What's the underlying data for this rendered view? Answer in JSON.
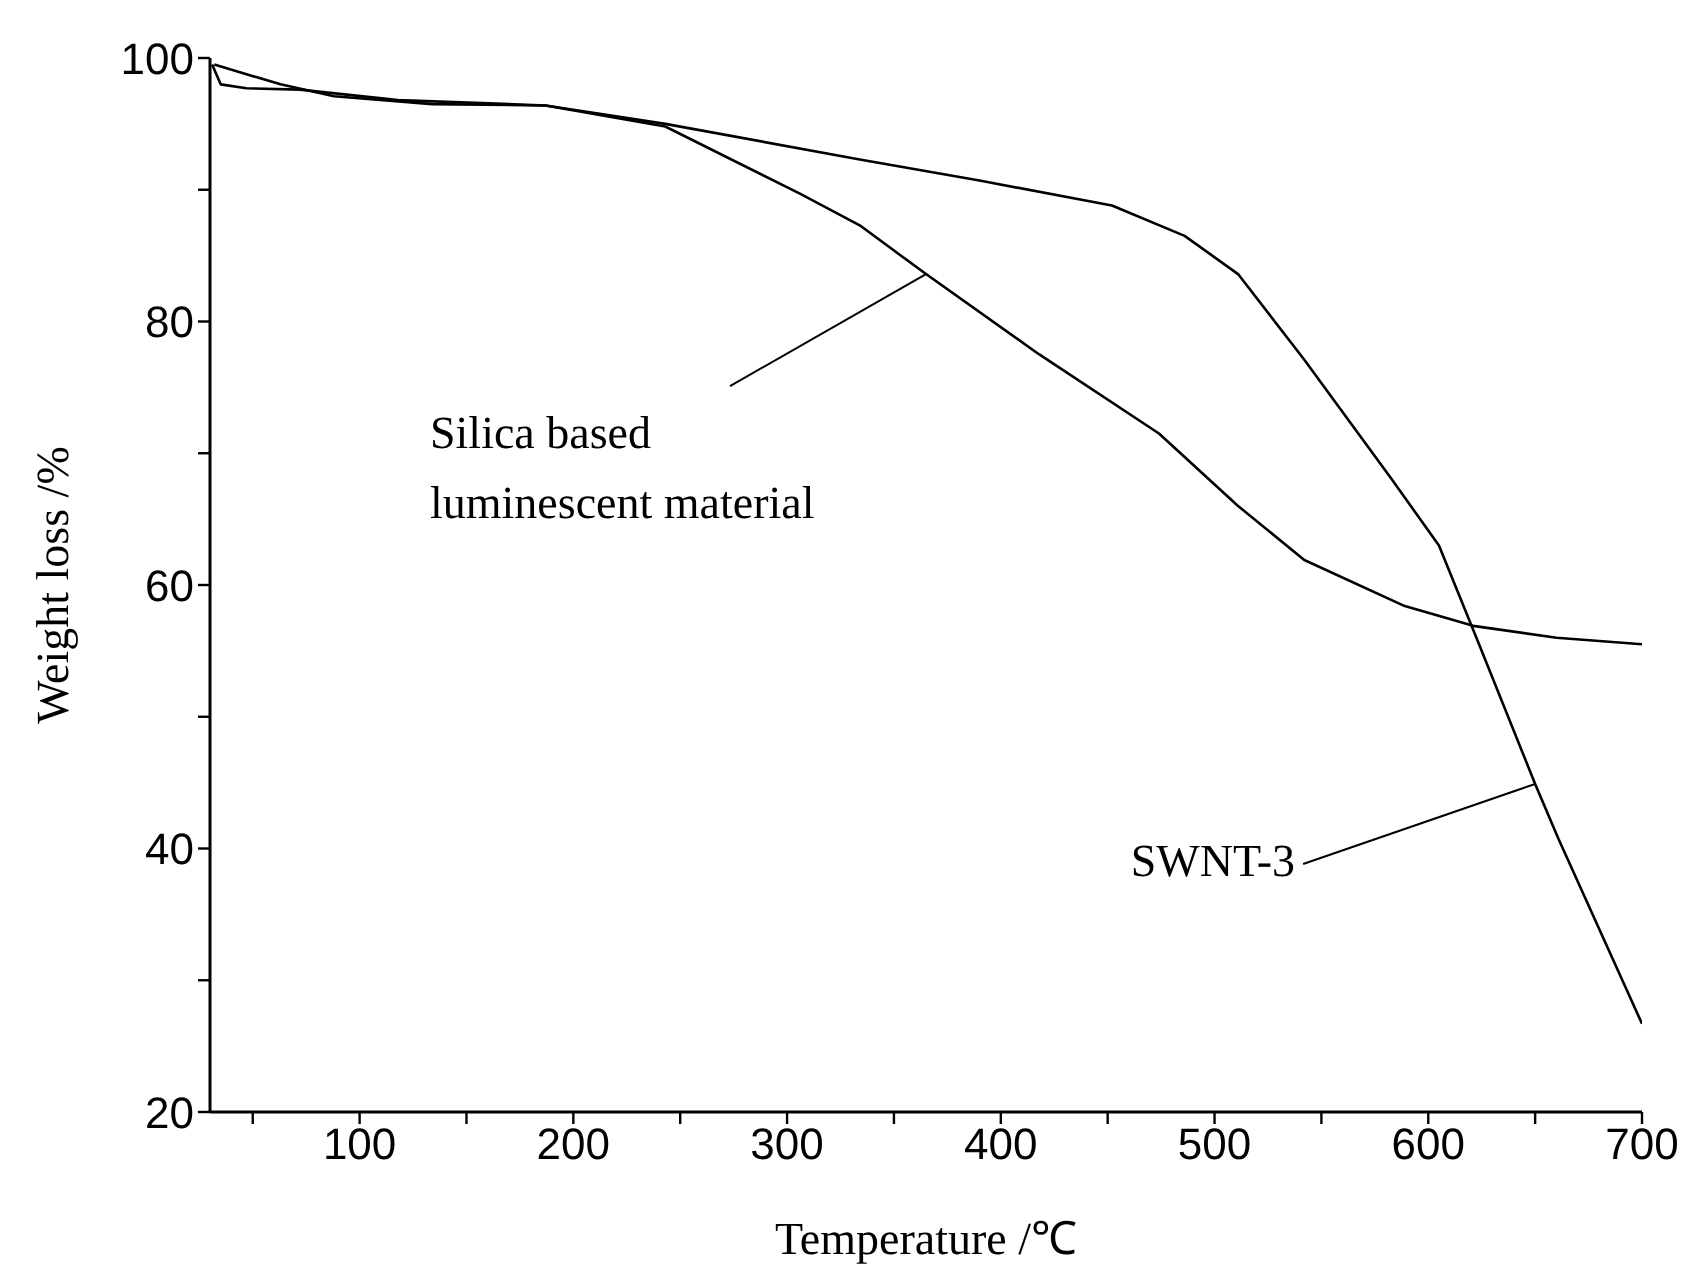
{
  "chart_data": {
    "type": "line",
    "xlabel": "Temperature /℃",
    "ylabel": "Weight loss /%",
    "xlim": [
      30,
      700
    ],
    "xticks": [
      {
        "value": 50,
        "label": null
      },
      100,
      {
        "value": 150,
        "label": null
      },
      200,
      {
        "value": 250,
        "label": null
      },
      300,
      {
        "value": 350,
        "label": null
      },
      400,
      {
        "value": 450,
        "label": null
      },
      500,
      {
        "value": 550,
        "label": null
      },
      600,
      {
        "value": 650,
        "label": null
      },
      700
    ],
    "ylim": [
      20,
      100
    ],
    "yticks": [
      20,
      {
        "value": 30,
        "label": null
      },
      40,
      {
        "value": 50,
        "label": null
      },
      60,
      {
        "value": 70,
        "label": null
      },
      80,
      {
        "value": 90,
        "label": null
      },
      100
    ],
    "grid": false,
    "marker": "none",
    "line_style": "solid",
    "annotations": [
      {
        "text": "Silica based luminescent material",
        "x": 365,
        "y": 83.6
      },
      {
        "text": "SWNT-3",
        "x": 650,
        "y": 44.9
      }
    ],
    "series": [
      {
        "color": "#000000",
        "x": [
          32,
          63,
          88,
          134,
          187,
          243,
          306,
          334,
          365,
          418,
          474,
          511,
          542,
          589,
          621,
          660,
          700
        ],
        "values": [
          99.5,
          98,
          97.1,
          96.5,
          96.4,
          94.8,
          89.7,
          87.3,
          83.6,
          77.5,
          71.5,
          66,
          61.9,
          58.4,
          56.9,
          56,
          55.5
        ]
      },
      {
        "color": "#000000",
        "x": [
          31,
          35,
          47,
          72,
          118,
          187,
          243,
          334,
          390,
          452,
          486,
          511,
          542,
          583,
          605,
          623,
          650,
          661,
          700
        ],
        "values": [
          99.5,
          98,
          97.7,
          97.6,
          96.8,
          96.4,
          95,
          92.3,
          90.7,
          88.8,
          86.5,
          83.6,
          77.1,
          68,
          63,
          55.8,
          44.9,
          40.7,
          26.7
        ]
      }
    ]
  }
}
